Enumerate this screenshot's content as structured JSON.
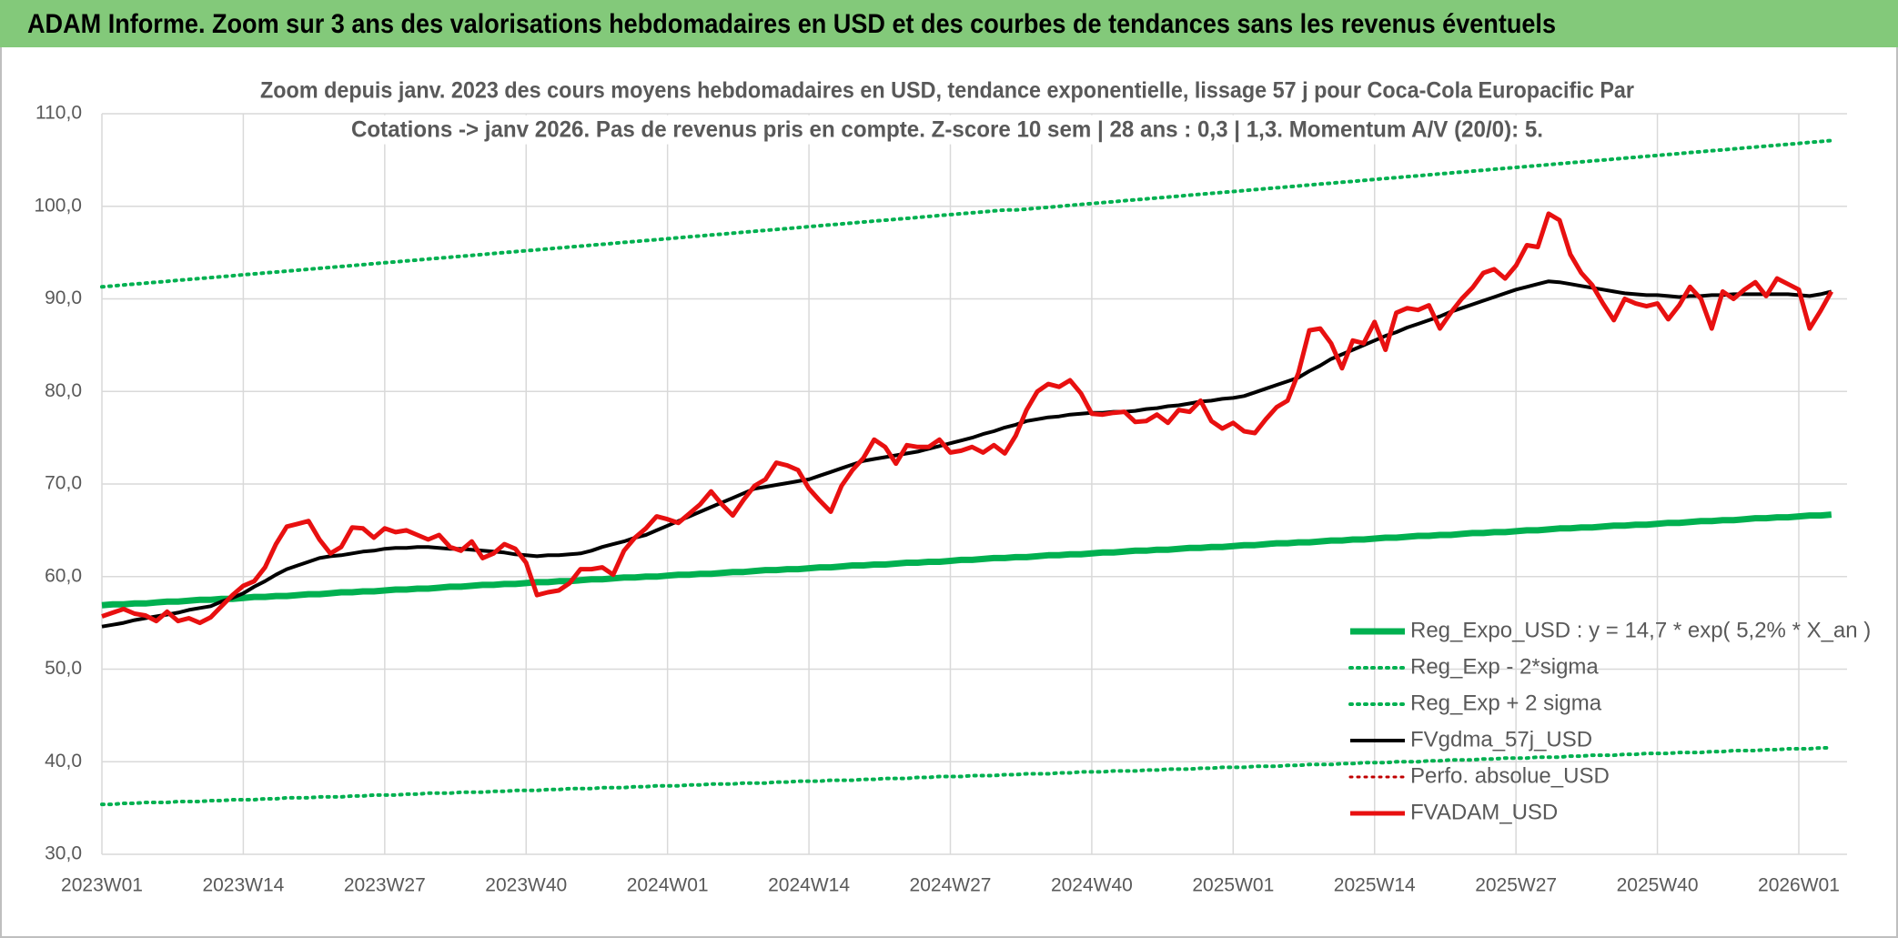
{
  "chart_data": {
    "type": "line",
    "title": "ADAM Informe. Zoom sur 3 ans des valorisations hebdomadaires en USD et des courbes de tendances sans les revenus éventuels",
    "subtitle_lines": [
      "Zoom depuis janv. 2023 des cours moyens hebdomadaires en USD, tendance exponentielle, lissage 57 j pour Coca-Cola Europacific Par",
      "Cotations -> janv 2026. Pas de revenus pris en compte. Z-score 10 sem | 28 ans : 0,3 | 1,3. Momentum A/V (20/0): 5."
    ],
    "categories": [
      "2023W01",
      null,
      null,
      null,
      null,
      null,
      null,
      null,
      null,
      null,
      null,
      null,
      null,
      "2023W14",
      null,
      null,
      null,
      null,
      null,
      null,
      null,
      null,
      null,
      null,
      null,
      null,
      "2023W27",
      null,
      null,
      null,
      null,
      null,
      null,
      null,
      null,
      null,
      null,
      null,
      null,
      "2023W40",
      null,
      null,
      null,
      null,
      null,
      null,
      null,
      null,
      null,
      null,
      null,
      null,
      "2024W01",
      null,
      null,
      null,
      null,
      null,
      null,
      null,
      null,
      null,
      null,
      null,
      null,
      "2024W14",
      null,
      null,
      null,
      null,
      null,
      null,
      null,
      null,
      null,
      null,
      null,
      null,
      "2024W27",
      null,
      null,
      null,
      null,
      null,
      null,
      null,
      null,
      null,
      null,
      null,
      null,
      "2024W40",
      null,
      null,
      null,
      null,
      null,
      null,
      null,
      null,
      null,
      null,
      null,
      null,
      "2025W01",
      null,
      null,
      null,
      null,
      null,
      null,
      null,
      null,
      null,
      null,
      null,
      null,
      "2025W14",
      null,
      null,
      null,
      null,
      null,
      null,
      null,
      null,
      null,
      null,
      null,
      null,
      "2025W27",
      null,
      null,
      null,
      null,
      null,
      null,
      null,
      null,
      null,
      null,
      null,
      null,
      "2025W40",
      null,
      null,
      null,
      null,
      null,
      null,
      null,
      null,
      null,
      null,
      null,
      null,
      "2026W01",
      null,
      null,
      null
    ],
    "ylim": [
      30,
      110
    ],
    "yticks": [
      {
        "value": 30,
        "label": "30,0"
      },
      {
        "value": 40,
        "label": "40,0"
      },
      {
        "value": 50,
        "label": "50,0"
      },
      {
        "value": 60,
        "label": "60,0"
      },
      {
        "value": 70,
        "label": "70,0"
      },
      {
        "value": 80,
        "label": "80,0"
      },
      {
        "value": 90,
        "label": "90,0"
      },
      {
        "value": 100,
        "label": "100,0"
      },
      {
        "value": 110,
        "label": "110,0"
      }
    ],
    "grid": true,
    "legend": "lower right",
    "series": [
      {
        "name": "Reg_Expo_USD : y = 14,7 * exp( 5,2% *  X_an )",
        "color": "#00b050",
        "line_style": "solid",
        "values": [
          56.9,
          57.0,
          57.0,
          57.1,
          57.1,
          57.2,
          57.3,
          57.3,
          57.4,
          57.5,
          57.5,
          57.6,
          57.6,
          57.7,
          57.8,
          57.8,
          57.9,
          57.9,
          58.0,
          58.1,
          58.1,
          58.2,
          58.3,
          58.3,
          58.4,
          58.4,
          58.5,
          58.6,
          58.6,
          58.7,
          58.7,
          58.8,
          58.9,
          58.9,
          59.0,
          59.1,
          59.1,
          59.2,
          59.2,
          59.3,
          59.4,
          59.4,
          59.5,
          59.5,
          59.6,
          59.7,
          59.7,
          59.8,
          59.9,
          59.9,
          60.0,
          60.0,
          60.1,
          60.2,
          60.2,
          60.3,
          60.3,
          60.4,
          60.5,
          60.5,
          60.6,
          60.7,
          60.7,
          60.8,
          60.8,
          60.9,
          61.0,
          61.0,
          61.1,
          61.2,
          61.2,
          61.3,
          61.3,
          61.4,
          61.5,
          61.5,
          61.6,
          61.6,
          61.7,
          61.8,
          61.8,
          61.9,
          62.0,
          62.0,
          62.1,
          62.1,
          62.2,
          62.3,
          62.3,
          62.4,
          62.4,
          62.5,
          62.6,
          62.6,
          62.7,
          62.8,
          62.8,
          62.9,
          62.9,
          63.0,
          63.1,
          63.1,
          63.2,
          63.2,
          63.3,
          63.4,
          63.4,
          63.5,
          63.6,
          63.6,
          63.7,
          63.7,
          63.8,
          63.9,
          63.9,
          64.0,
          64.0,
          64.1,
          64.2,
          64.2,
          64.3,
          64.4,
          64.4,
          64.5,
          64.5,
          64.6,
          64.7,
          64.7,
          64.8,
          64.8,
          64.9,
          65.0,
          65.0,
          65.1,
          65.2,
          65.2,
          65.3,
          65.3,
          65.4,
          65.5,
          65.5,
          65.6,
          65.6,
          65.7,
          65.8,
          65.8,
          65.9,
          66.0,
          66.0,
          66.1,
          66.1,
          66.2,
          66.3,
          66.3,
          66.4,
          66.4,
          66.5,
          66.6,
          66.6,
          66.7
        ]
      },
      {
        "name": "Reg_Exp - 2*sigma",
        "color": "#00b050",
        "line_style": "dotted",
        "values": [
          35.4,
          35.4,
          35.5,
          35.5,
          35.6,
          35.6,
          35.6,
          35.7,
          35.7,
          35.7,
          35.8,
          35.8,
          35.9,
          35.9,
          35.9,
          36.0,
          36.0,
          36.1,
          36.1,
          36.1,
          36.2,
          36.2,
          36.2,
          36.3,
          36.3,
          36.4,
          36.4,
          36.4,
          36.5,
          36.5,
          36.6,
          36.6,
          36.6,
          36.7,
          36.7,
          36.7,
          36.8,
          36.8,
          36.9,
          36.9,
          36.9,
          37.0,
          37.0,
          37.1,
          37.1,
          37.1,
          37.2,
          37.2,
          37.2,
          37.3,
          37.3,
          37.4,
          37.4,
          37.4,
          37.5,
          37.5,
          37.6,
          37.6,
          37.6,
          37.7,
          37.7,
          37.7,
          37.8,
          37.8,
          37.9,
          37.9,
          37.9,
          38.0,
          38.0,
          38.0,
          38.1,
          38.1,
          38.2,
          38.2,
          38.2,
          38.3,
          38.3,
          38.4,
          38.4,
          38.4,
          38.5,
          38.5,
          38.5,
          38.6,
          38.6,
          38.7,
          38.7,
          38.7,
          38.8,
          38.8,
          38.9,
          38.9,
          38.9,
          39.0,
          39.0,
          39.0,
          39.1,
          39.1,
          39.2,
          39.2,
          39.2,
          39.3,
          39.3,
          39.4,
          39.4,
          39.4,
          39.5,
          39.5,
          39.5,
          39.6,
          39.6,
          39.7,
          39.7,
          39.7,
          39.8,
          39.8,
          39.9,
          39.9,
          39.9,
          40.0,
          40.0,
          40.0,
          40.1,
          40.1,
          40.2,
          40.2,
          40.2,
          40.3,
          40.3,
          40.4,
          40.4,
          40.4,
          40.5,
          40.5,
          40.5,
          40.6,
          40.6,
          40.7,
          40.7,
          40.7,
          40.8,
          40.8,
          40.9,
          40.9,
          40.9,
          41.0,
          41.0,
          41.0,
          41.1,
          41.1,
          41.2,
          41.2,
          41.2,
          41.3,
          41.3,
          41.4,
          41.4,
          41.4,
          41.5,
          41.5
        ]
      },
      {
        "name": "Reg_Exp + 2 sigma",
        "color": "#00b050",
        "line_style": "dotted",
        "values": [
          91.3,
          91.4,
          91.5,
          91.6,
          91.7,
          91.8,
          91.9,
          92.0,
          92.1,
          92.2,
          92.3,
          92.4,
          92.5,
          92.6,
          92.7,
          92.8,
          92.9,
          93.0,
          93.1,
          93.2,
          93.3,
          93.4,
          93.5,
          93.6,
          93.7,
          93.8,
          93.9,
          94.0,
          94.1,
          94.2,
          94.3,
          94.4,
          94.5,
          94.6,
          94.7,
          94.8,
          94.9,
          95.0,
          95.1,
          95.2,
          95.3,
          95.4,
          95.5,
          95.6,
          95.7,
          95.8,
          95.9,
          96.0,
          96.1,
          96.2,
          96.3,
          96.4,
          96.5,
          96.6,
          96.7,
          96.8,
          96.9,
          97.0,
          97.1,
          97.2,
          97.3,
          97.4,
          97.5,
          97.6,
          97.7,
          97.8,
          97.9,
          98.0,
          98.1,
          98.2,
          98.3,
          98.4,
          98.5,
          98.6,
          98.7,
          98.8,
          98.9,
          99.0,
          99.1,
          99.2,
          99.3,
          99.4,
          99.5,
          99.6,
          99.6,
          99.7,
          99.8,
          99.9,
          100.0,
          100.1,
          100.2,
          100.3,
          100.4,
          100.5,
          100.6,
          100.7,
          100.8,
          100.9,
          101.0,
          101.1,
          101.2,
          101.3,
          101.4,
          101.5,
          101.6,
          101.7,
          101.8,
          101.9,
          102.0,
          102.1,
          102.2,
          102.3,
          102.4,
          102.5,
          102.6,
          102.7,
          102.8,
          102.9,
          103.0,
          103.1,
          103.2,
          103.3,
          103.4,
          103.5,
          103.6,
          103.7,
          103.8,
          103.9,
          104.0,
          104.1,
          104.2,
          104.3,
          104.4,
          104.5,
          104.6,
          104.7,
          104.8,
          104.9,
          105.0,
          105.1,
          105.2,
          105.3,
          105.4,
          105.5,
          105.6,
          105.7,
          105.8,
          105.9,
          106.0,
          106.1,
          106.2,
          106.3,
          106.4,
          106.5,
          106.6,
          106.7,
          106.8,
          106.9,
          107.0,
          107.1
        ]
      },
      {
        "name": "FVgdma_57j_USD",
        "color": "#000000",
        "line_style": "solid",
        "values": [
          54.6,
          54.8,
          55.0,
          55.3,
          55.5,
          55.7,
          55.9,
          56.1,
          56.4,
          56.6,
          56.8,
          57.3,
          57.7,
          58.2,
          58.9,
          59.5,
          60.2,
          60.8,
          61.2,
          61.6,
          62.0,
          62.2,
          62.3,
          62.5,
          62.7,
          62.8,
          63.0,
          63.1,
          63.1,
          63.2,
          63.2,
          63.1,
          63.0,
          63.0,
          62.9,
          62.8,
          62.7,
          62.6,
          62.4,
          62.3,
          62.2,
          62.3,
          62.3,
          62.4,
          62.5,
          62.8,
          63.2,
          63.5,
          63.8,
          64.2,
          64.5,
          65.0,
          65.5,
          66.0,
          66.5,
          67.0,
          67.5,
          68.0,
          68.5,
          69.0,
          69.5,
          69.7,
          69.9,
          70.1,
          70.3,
          70.5,
          70.9,
          71.3,
          71.7,
          72.1,
          72.5,
          72.7,
          72.9,
          73.1,
          73.3,
          73.5,
          73.8,
          74.1,
          74.4,
          74.7,
          75.0,
          75.4,
          75.7,
          76.1,
          76.4,
          76.8,
          77.0,
          77.2,
          77.3,
          77.5,
          77.6,
          77.7,
          77.7,
          77.8,
          77.8,
          77.9,
          78.1,
          78.2,
          78.4,
          78.5,
          78.7,
          78.9,
          79.0,
          79.2,
          79.3,
          79.5,
          79.9,
          80.3,
          80.7,
          81.1,
          81.5,
          82.2,
          82.8,
          83.5,
          84.0,
          84.5,
          85.0,
          85.5,
          86.0,
          86.4,
          86.9,
          87.3,
          87.7,
          88.1,
          88.6,
          89.0,
          89.4,
          89.8,
          90.2,
          90.6,
          91.0,
          91.3,
          91.6,
          91.9,
          91.8,
          91.6,
          91.4,
          91.2,
          91.0,
          90.8,
          90.6,
          90.5,
          90.4,
          90.4,
          90.3,
          90.2,
          90.3,
          90.3,
          90.4,
          90.4,
          90.5,
          90.5,
          90.5,
          90.5,
          90.5,
          90.5,
          90.4,
          90.3,
          90.5,
          90.8
        ]
      },
      {
        "name": "Perfo. absolue_USD",
        "color": "#c00000",
        "line_style": "dotted",
        "values": [
          null,
          null,
          null,
          null,
          null,
          null,
          null,
          null,
          null,
          null,
          null,
          null,
          null,
          null,
          null,
          null,
          null,
          null,
          null,
          null,
          null,
          null,
          null,
          null,
          null,
          null,
          null,
          null,
          null,
          null,
          null,
          null,
          null,
          null,
          null,
          null,
          null,
          null,
          null,
          null,
          null,
          null,
          null,
          null,
          null,
          null,
          null,
          null,
          null,
          null,
          null,
          null,
          null,
          null,
          null,
          null,
          null,
          null,
          null,
          null,
          null,
          null,
          null,
          null,
          null,
          null,
          null,
          null,
          null,
          null,
          null,
          null,
          null,
          null,
          null,
          null,
          null,
          null,
          null,
          null,
          null,
          null,
          null,
          null,
          null,
          null,
          null,
          null,
          null,
          null,
          null,
          null,
          null,
          null,
          null,
          null,
          null,
          null,
          null,
          null,
          null,
          null,
          null,
          null,
          null,
          null,
          null,
          null,
          null,
          null,
          null,
          null,
          null,
          null,
          null,
          null,
          null,
          null,
          null,
          null,
          null,
          null,
          null,
          null,
          null,
          null,
          null,
          null,
          null,
          null,
          null,
          null,
          null,
          null,
          null,
          null,
          null,
          null,
          null,
          null,
          null,
          null,
          null,
          null,
          null,
          null,
          null,
          null,
          null,
          null,
          null,
          null,
          null,
          null,
          null,
          null,
          null,
          null,
          null,
          null
        ]
      },
      {
        "name": "FVADAM_USD",
        "color": "#e81010",
        "line_style": "solid",
        "values": [
          55.7,
          56.1,
          56.5,
          56.0,
          55.8,
          55.2,
          56.2,
          55.2,
          55.5,
          55.0,
          55.6,
          56.8,
          58.0,
          59.0,
          59.5,
          61.0,
          63.5,
          65.4,
          65.7,
          66.0,
          64.0,
          62.5,
          63.2,
          65.3,
          65.2,
          64.2,
          65.2,
          64.8,
          65.0,
          64.5,
          64.0,
          64.5,
          63.2,
          62.8,
          63.8,
          62.0,
          62.5,
          63.5,
          63.0,
          61.5,
          58.0,
          58.3,
          58.5,
          59.3,
          60.8,
          60.8,
          61.0,
          60.2,
          62.8,
          64.2,
          65.2,
          66.5,
          66.2,
          65.8,
          66.8,
          67.8,
          69.2,
          67.8,
          66.6,
          68.3,
          69.8,
          70.5,
          72.3,
          72.0,
          71.5,
          69.5,
          68.2,
          67.0,
          69.8,
          71.5,
          72.8,
          74.8,
          74.0,
          72.2,
          74.2,
          74.0,
          74.0,
          74.8,
          73.4,
          73.6,
          74.0,
          73.4,
          74.2,
          73.3,
          75.2,
          78.0,
          80.0,
          80.8,
          80.5,
          81.2,
          79.8,
          77.6,
          77.5,
          77.7,
          77.8,
          76.7,
          76.8,
          77.5,
          76.6,
          78.0,
          77.8,
          79.0,
          76.8,
          76.0,
          76.6,
          75.7,
          75.5,
          77.0,
          78.3,
          79.0,
          82.0,
          86.6,
          86.8,
          85.2,
          82.5,
          85.5,
          85.2,
          87.5,
          84.5,
          88.5,
          89.0,
          88.8,
          89.3,
          86.8,
          88.5,
          90.0,
          91.2,
          92.8,
          93.2,
          92.2,
          93.6,
          95.8,
          95.6,
          99.2,
          98.5,
          94.8,
          92.8,
          91.5,
          89.5,
          87.7,
          90.0,
          89.5,
          89.2,
          89.5,
          87.8,
          89.3,
          91.3,
          90.0,
          86.8,
          90.8,
          90.0,
          91.0,
          91.8,
          90.3,
          92.2,
          91.6,
          91.0,
          86.8,
          88.7,
          90.8
        ]
      }
    ]
  }
}
